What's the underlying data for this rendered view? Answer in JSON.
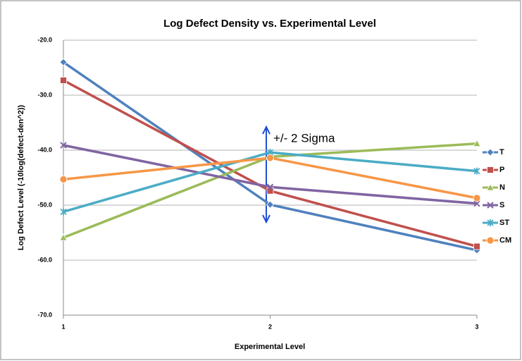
{
  "chart_data": {
    "type": "line",
    "title": "Log Defect Density vs. Experimental Level",
    "x_label": "Experimental Level",
    "y_label": "Log Defect Level (-10log(defect-den^2))",
    "x": [
      1,
      2,
      3
    ],
    "xlim": [
      1,
      3
    ],
    "xticks": [
      1,
      2,
      3
    ],
    "ylim": [
      -70,
      -20
    ],
    "yticks": [
      {
        "value": -70,
        "label": "-70.0"
      },
      {
        "value": -60,
        "label": "-60.0"
      },
      {
        "value": -50,
        "label": "-50.0"
      },
      {
        "value": -40,
        "label": "-40.0"
      },
      {
        "value": -30,
        "label": "-30.0"
      },
      {
        "value": -20,
        "label": "-20.0"
      }
    ],
    "grid": true,
    "legend": "right",
    "annotation": "+/- 2 Sigma",
    "series": [
      {
        "name": "T",
        "color": "#4f81bd",
        "marker": "diamond",
        "values": [
          -24.0,
          -49.9,
          -58.2
        ]
      },
      {
        "name": "P",
        "color": "#c0504d",
        "marker": "square",
        "values": [
          -27.3,
          -47.4,
          -57.5
        ]
      },
      {
        "name": "N",
        "color": "#9bbb59",
        "marker": "triangle",
        "values": [
          -55.9,
          -41.2,
          -38.8
        ]
      },
      {
        "name": "S",
        "color": "#8064a2",
        "marker": "x",
        "values": [
          -39.1,
          -46.7,
          -49.7
        ]
      },
      {
        "name": "ST",
        "color": "#4bacc6",
        "marker": "star",
        "values": [
          -51.2,
          -40.4,
          -43.8
        ]
      },
      {
        "name": "CM",
        "color": "#f79646",
        "marker": "circle",
        "values": [
          -45.3,
          -41.4,
          -48.7
        ]
      }
    ]
  }
}
